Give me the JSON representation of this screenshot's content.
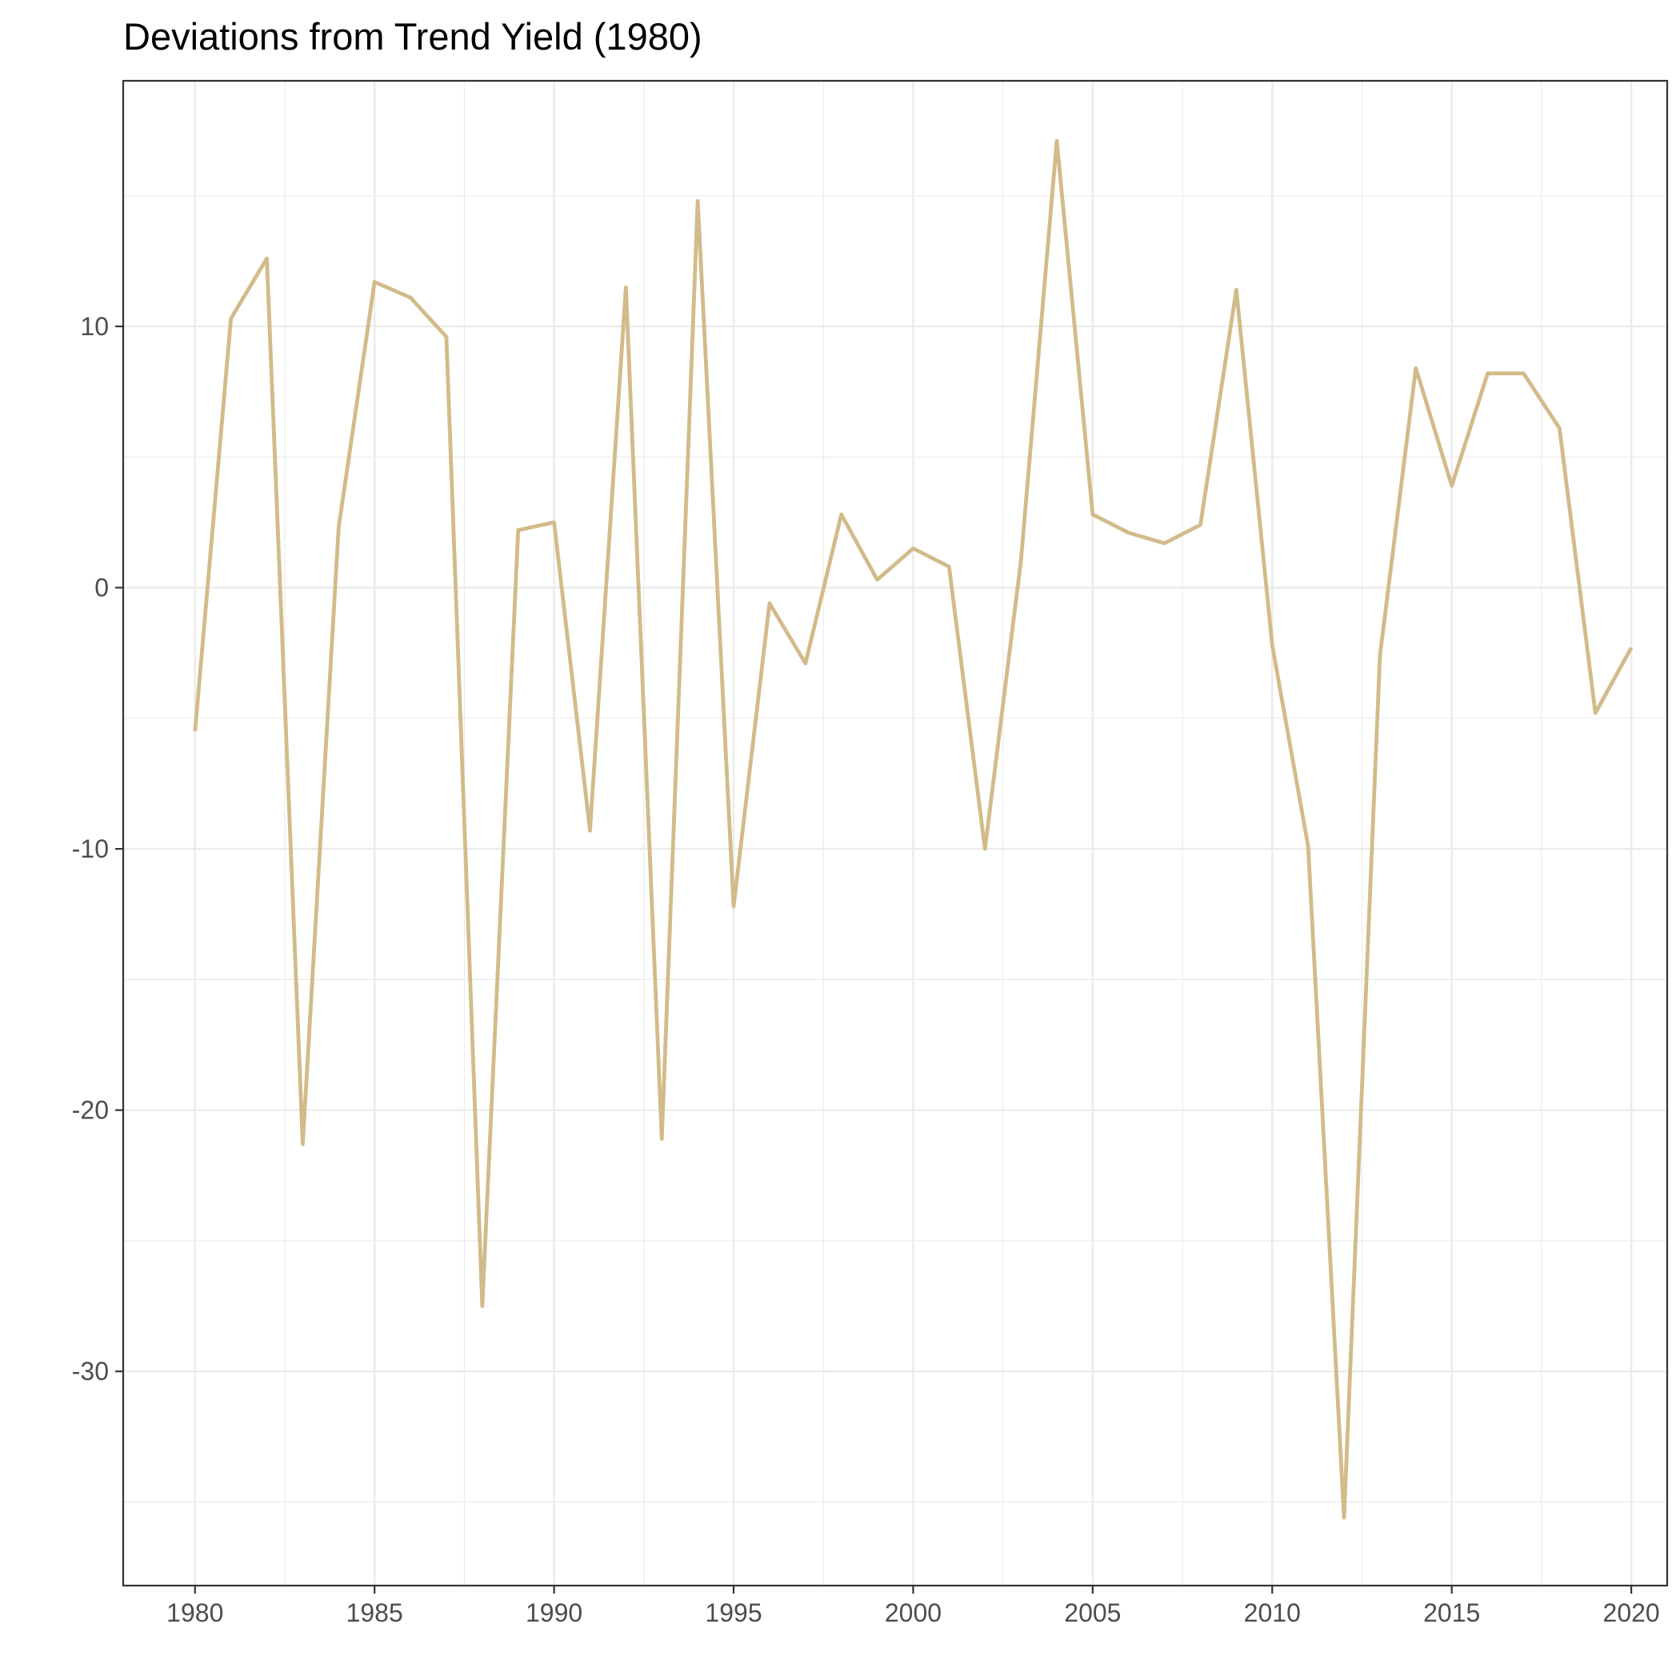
{
  "chart_data": {
    "type": "line",
    "title": "Deviations from Trend Yield (1980)",
    "xlabel": "",
    "ylabel": "",
    "xlim": [
      1978,
      2021
    ],
    "ylim": [
      -38.2,
      19.4
    ],
    "x_ticks": [
      1980,
      1985,
      1990,
      1995,
      2000,
      2005,
      2010,
      2015,
      2020
    ],
    "y_ticks": [
      10,
      0,
      -10,
      -20,
      -30
    ],
    "y_tick_labels": [
      "10",
      "0",
      "-10",
      "-20",
      "-30"
    ],
    "grid": true,
    "legend": "none",
    "series": [
      {
        "color": "#d2bb8a",
        "x": [
          1980,
          1981,
          1982,
          1983,
          1984,
          1985,
          1986,
          1987,
          1988,
          1989,
          1990,
          1991,
          1992,
          1993,
          1994,
          1995,
          1996,
          1997,
          1998,
          1999,
          2000,
          2001,
          2002,
          2003,
          2004,
          2005,
          2006,
          2007,
          2008,
          2009,
          2010,
          2011,
          2012,
          2013,
          2014,
          2015,
          2016,
          2017,
          2018,
          2019,
          2020
        ],
        "values": [
          -5.5,
          10.3,
          12.6,
          -21.3,
          2.3,
          11.7,
          11.1,
          9.6,
          -27.5,
          2.2,
          2.5,
          -9.3,
          11.5,
          -21.1,
          14.8,
          -12.2,
          -0.6,
          -2.9,
          2.8,
          0.3,
          1.5,
          0.8,
          -10.0,
          1.0,
          17.1,
          2.8,
          2.1,
          1.7,
          2.4,
          11.4,
          -2.2,
          -9.9,
          -35.6,
          -2.6,
          8.4,
          3.9,
          8.2,
          8.2,
          6.1,
          -4.8,
          -2.3
        ]
      }
    ]
  }
}
